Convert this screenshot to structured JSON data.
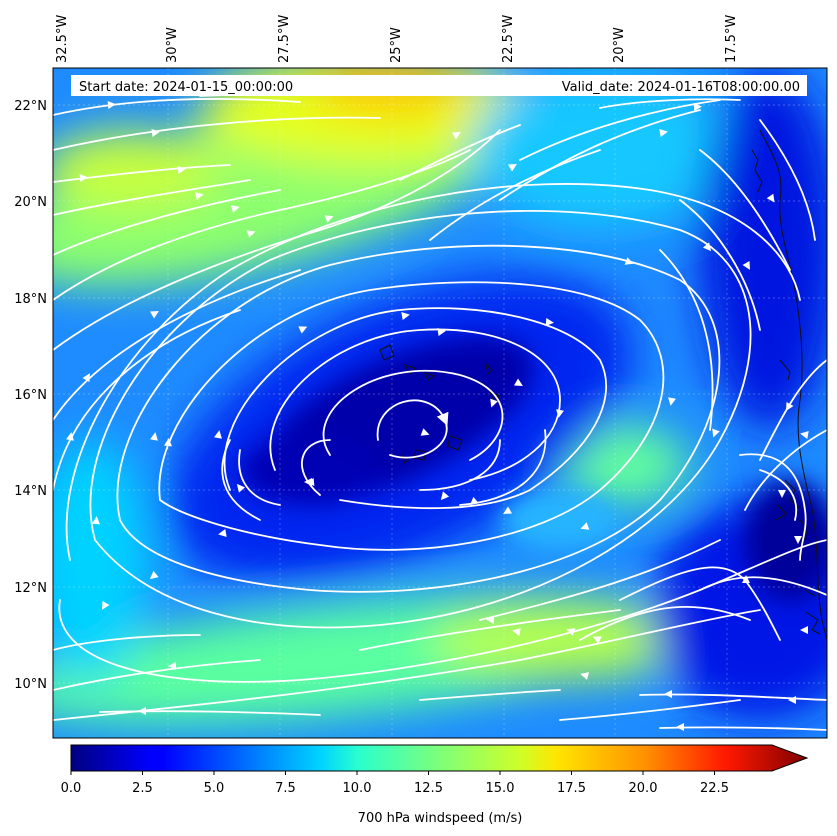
{
  "map": {
    "start_label": "Start date: 2024-01-15_00:00:00",
    "valid_label": "Valid_date: 2024-01-16T08:00:00.00",
    "lon_ticks": [
      "32.5°W",
      "30°W",
      "27.5°W",
      "25°W",
      "22.5°W",
      "20°W",
      "17.5°W"
    ],
    "lat_ticks": [
      "22°N",
      "20°N",
      "18°N",
      "16°N",
      "14°N",
      "12°N",
      "10°N"
    ],
    "field": "700 hPa windspeed",
    "vortex_center": {
      "lon": -25.0,
      "lat": 15.3
    },
    "streamline_color": "#ffffff"
  },
  "colorbar": {
    "label": "700 hPa windspeed (m/s)",
    "ticks": [
      "0.0",
      "2.5",
      "5.0",
      "7.5",
      "10.0",
      "12.5",
      "15.0",
      "17.5",
      "20.0",
      "22.5"
    ],
    "min": 0,
    "max": 25,
    "colormap": "jet",
    "extend": "max"
  }
}
